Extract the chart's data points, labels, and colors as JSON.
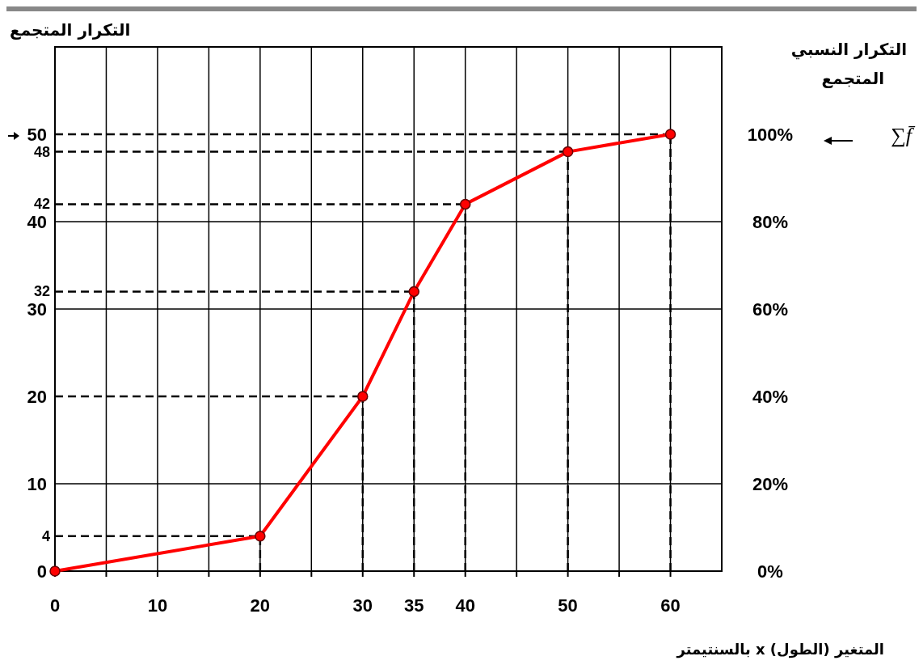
{
  "chart_data": {
    "type": "line",
    "ylabel": "التكرار المتجمع",
    "y2label": "التكرار النسبي المتجمع",
    "xlabel": "المتغير (الطول) x بالسنتيمتر",
    "annotations": [
      "∑f̄"
    ],
    "x": [
      0,
      20,
      30,
      35,
      40,
      50,
      60
    ],
    "series": [
      {
        "color": "#ff0000",
        "values": [
          0,
          4,
          20,
          32,
          42,
          48,
          50
        ]
      }
    ],
    "xlim": [
      0,
      65
    ],
    "xticks": [
      0,
      {
        "value": 5,
        "label": null
      },
      10,
      {
        "value": 15,
        "label": null
      },
      20,
      {
        "value": 25,
        "label": null
      },
      30,
      {
        "value": 35,
        "label": "35"
      },
      40,
      {
        "value": 45,
        "label": null
      },
      50,
      {
        "value": 55,
        "label": null
      },
      60
    ],
    "ylim": [
      0,
      60
    ],
    "yticks": [
      0,
      10,
      20,
      30,
      40,
      50
    ],
    "y2lim": [
      0,
      120
    ],
    "y2ticks": [
      {
        "value": 0,
        "label": "0%"
      },
      {
        "value": 20,
        "label": "20%"
      },
      {
        "value": 40,
        "label": "40%"
      },
      {
        "value": 60,
        "label": "60%"
      },
      {
        "value": 80,
        "label": "80%"
      },
      {
        "value": 100,
        "label": "100%"
      }
    ],
    "ref_lines": [
      {
        "axis": "y",
        "value": 4,
        "label": "4",
        "line_style": "dashed"
      },
      {
        "axis": "y",
        "value": 20,
        "label": null,
        "line_style": "dashed"
      },
      {
        "axis": "y",
        "value": 32,
        "label": "32",
        "line_style": "dashed"
      },
      {
        "axis": "y",
        "value": 42,
        "label": "42",
        "line_style": "dashed"
      },
      {
        "axis": "y",
        "value": 48,
        "label": "48",
        "line_style": "dashed"
      },
      {
        "axis": "y",
        "value": 50,
        "label": null,
        "line_style": "dashed"
      }
    ],
    "grid": true,
    "marker": "circle",
    "line_style": "solid"
  }
}
